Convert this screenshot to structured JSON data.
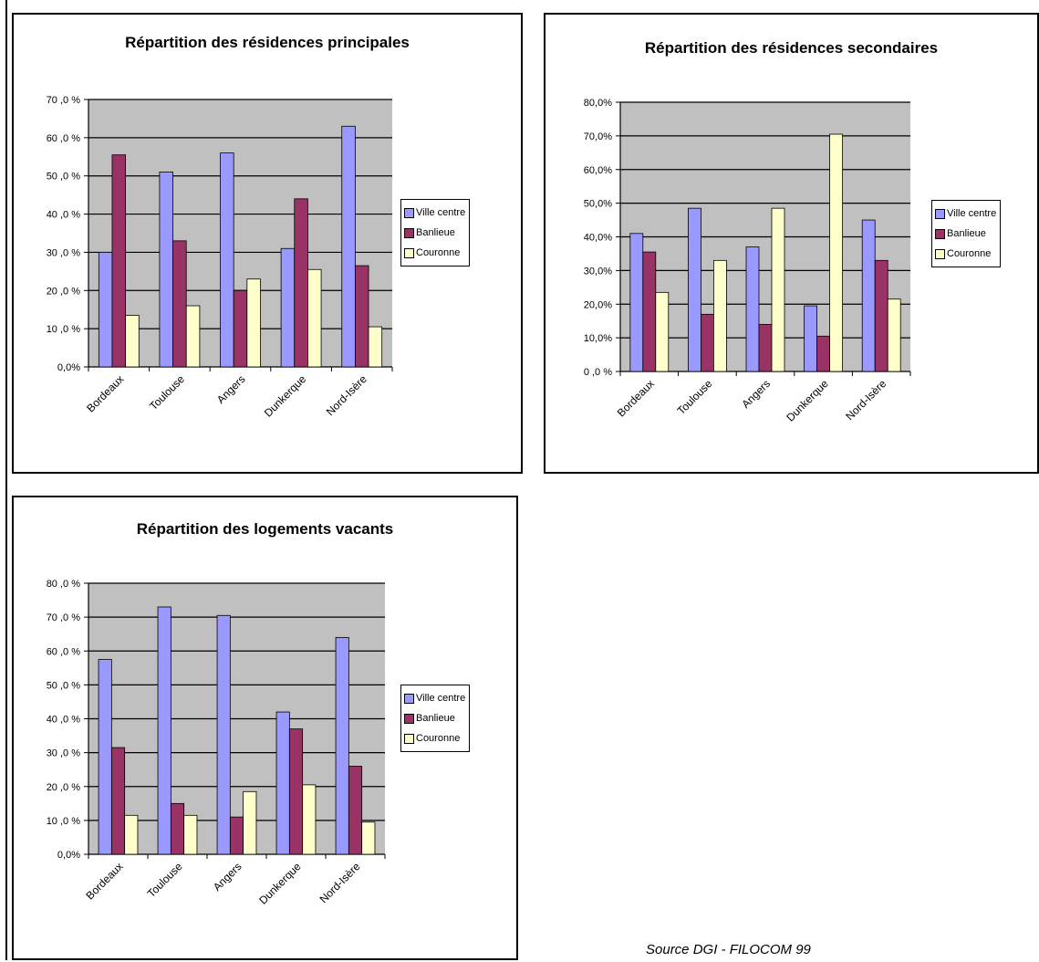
{
  "colors": {
    "plot_background": "#c0c0c0",
    "series": [
      "#9999ff",
      "#993366",
      "#ffffcc"
    ]
  },
  "chart_data": [
    {
      "type": "bar",
      "title": "Répartition des résidences principales",
      "categories": [
        "Bordeaux",
        "Toulouse",
        "Angers",
        "Dunkerque",
        "Nord-Isère"
      ],
      "series": [
        {
          "name": "Ville centre",
          "values": [
            30,
            51,
            56,
            31,
            63
          ]
        },
        {
          "name": "Banlieue",
          "values": [
            55.5,
            33,
            20,
            44,
            26.5
          ]
        },
        {
          "name": "Couronne",
          "values": [
            13.5,
            16,
            23,
            25.5,
            10.5
          ]
        }
      ],
      "ylim": [
        0,
        70
      ],
      "yticks": [
        "0,0%",
        "10 ,0 %",
        "20 ,0 %",
        "30 ,0 %",
        "40 ,0 %",
        "50 ,0 %",
        "60 ,0 %",
        "70 ,0 %"
      ],
      "grid": true,
      "legend": "right"
    },
    {
      "type": "bar",
      "title": "Répartition des résidences secondaires",
      "categories": [
        "Bordeaux",
        "Toulouse",
        "Angers",
        "Dunkerque",
        "Nord-Isère"
      ],
      "series": [
        {
          "name": "Ville centre",
          "values": [
            41,
            48.5,
            37,
            19.5,
            45
          ]
        },
        {
          "name": "Banlieue",
          "values": [
            35.5,
            17,
            14,
            10.5,
            33
          ]
        },
        {
          "name": "Couronne",
          "values": [
            23.5,
            33,
            48.5,
            70.5,
            21.5
          ]
        }
      ],
      "ylim": [
        0,
        80
      ],
      "yticks": [
        "0 ,0 %",
        "10,0%",
        "20,0%",
        "30,0%",
        "40,0%",
        "50,0%",
        "60,0%",
        "70,0%",
        "80,0%"
      ],
      "grid": true,
      "legend": "right"
    },
    {
      "type": "bar",
      "title": "Répartition des logements vacants",
      "categories": [
        "Bordeaux",
        "Toulouse",
        "Angers",
        "Dunkerque",
        "Nord-Isère"
      ],
      "series": [
        {
          "name": "Ville centre",
          "values": [
            57.5,
            73,
            70.5,
            42,
            64
          ]
        },
        {
          "name": "Banlieue",
          "values": [
            31.5,
            15,
            11,
            37,
            26
          ]
        },
        {
          "name": "Couronne",
          "values": [
            11.5,
            11.5,
            18.5,
            20.5,
            9.5
          ]
        }
      ],
      "ylim": [
        0,
        80
      ],
      "yticks": [
        "0,0%",
        "10 ,0 %",
        "20 ,0 %",
        "30 ,0 %",
        "40 ,0 %",
        "50 ,0 %",
        "60 ,0 %",
        "70 ,0 %",
        "80 ,0 %"
      ],
      "grid": true,
      "legend": "right"
    }
  ],
  "source": "Source DGI - FILOCOM 99"
}
